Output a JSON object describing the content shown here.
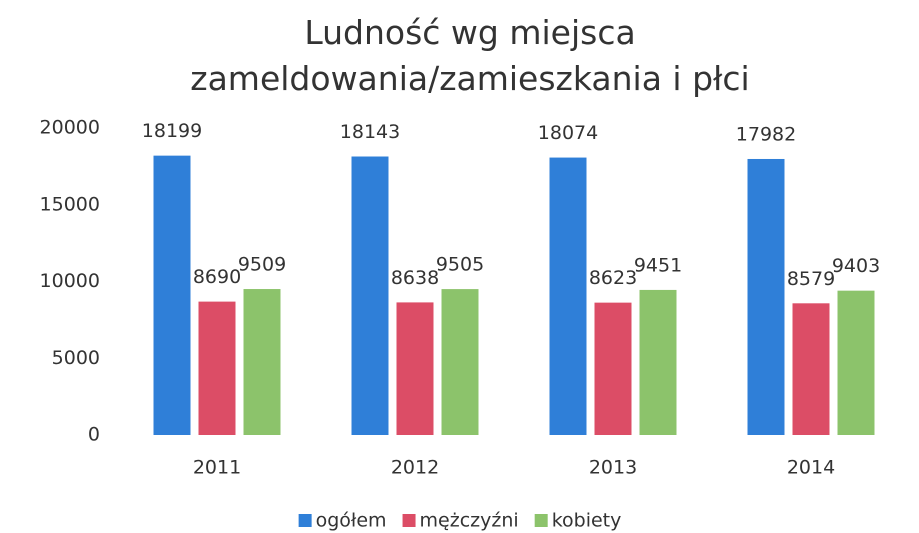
{
  "chart_data": {
    "type": "bar",
    "title": "Ludność wg miejsca zameldowania/zamieszkania i płci",
    "categories": [
      "2011",
      "2012",
      "2013",
      "2014"
    ],
    "series": [
      {
        "name": "ogółem",
        "color": "#2f7fd8",
        "values": [
          18199,
          18143,
          18074,
          17982
        ]
      },
      {
        "name": "mężczyźni",
        "color": "#dc4d66",
        "values": [
          8690,
          8638,
          8623,
          8579
        ]
      },
      {
        "name": "kobiety",
        "color": "#8cc36b",
        "values": [
          9509,
          9505,
          9451,
          9403
        ]
      }
    ],
    "ylim": [
      0,
      20000
    ],
    "yticks": [
      0,
      5000,
      10000,
      15000,
      20000
    ],
    "grid": false,
    "legend": "bottom"
  }
}
